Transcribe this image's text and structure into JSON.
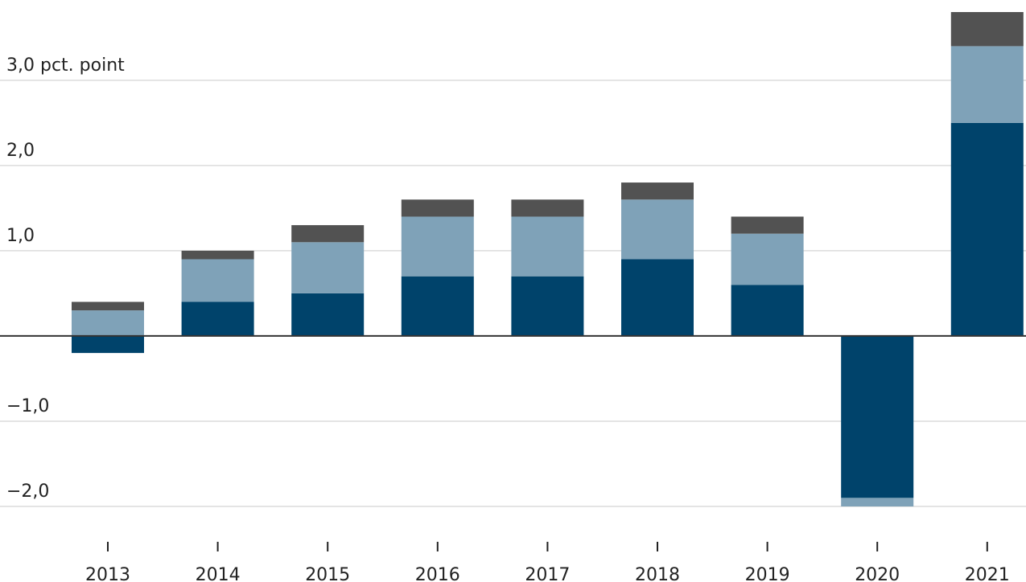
{
  "chart_data": {
    "type": "stacked_bar",
    "categories": [
      "2013",
      "2014",
      "2015",
      "2016",
      "2017",
      "2018",
      "2019",
      "2020",
      "2021"
    ],
    "series": [
      {
        "color": "#00436b",
        "values": [
          -0.2,
          0.4,
          0.5,
          0.7,
          0.7,
          0.9,
          0.6,
          -1.9,
          2.5
        ]
      },
      {
        "color": "#7fa2b8",
        "values": [
          0.3,
          0.5,
          0.6,
          0.7,
          0.7,
          0.7,
          0.6,
          -0.1,
          0.9
        ]
      },
      {
        "color": "#525252",
        "values": [
          0.1,
          0.1,
          0.2,
          0.2,
          0.2,
          0.2,
          0.2,
          0,
          0.4
        ]
      }
    ],
    "ylim": [
      -2.3,
      3.8
    ],
    "yticks": [
      {
        "value": 3,
        "label": "3,0 pct. point"
      },
      {
        "value": 2,
        "label": "2,0"
      },
      {
        "value": 1,
        "label": "1,0"
      },
      {
        "value": -1,
        "label": "−1,0"
      },
      {
        "value": -2,
        "label": "−2,0"
      }
    ],
    "grid": true
  }
}
